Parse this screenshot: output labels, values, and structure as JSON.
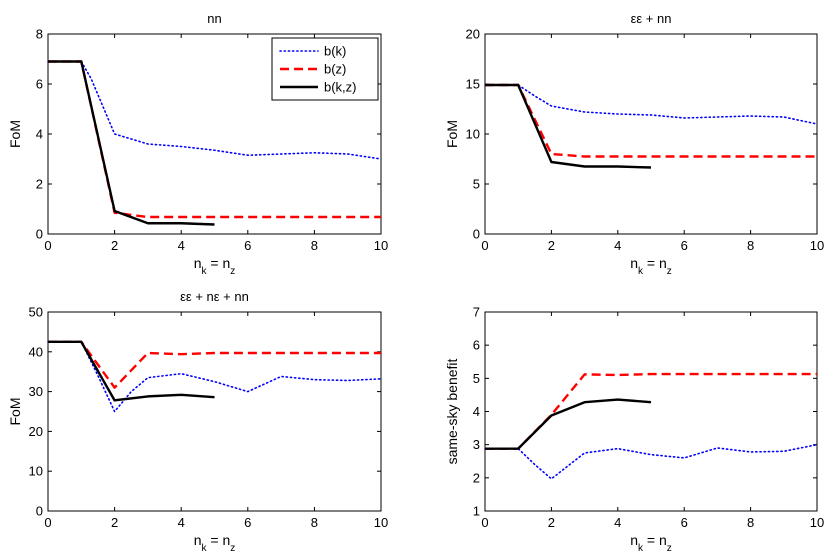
{
  "chart_data": [
    {
      "type": "line",
      "title": "nn",
      "xlabel": "n_k = n_z",
      "ylabel": "FoM",
      "xlim": [
        0,
        10
      ],
      "ylim": [
        0,
        8
      ],
      "xticks": [
        0,
        2,
        4,
        6,
        8,
        10
      ],
      "yticks": [
        0,
        2,
        4,
        6,
        8
      ],
      "legend": {
        "position": "top-right",
        "entries": [
          "b(k)",
          "b(z)",
          "b(k,z)"
        ]
      },
      "series": [
        {
          "name": "b(k)",
          "x": [
            0,
            1,
            1.3,
            2,
            3,
            4,
            5,
            6,
            7,
            8,
            9,
            10
          ],
          "values": [
            6.9,
            6.9,
            6.2,
            4.0,
            3.6,
            3.5,
            3.35,
            3.15,
            3.2,
            3.25,
            3.2,
            3.0
          ]
        },
        {
          "name": "b(z)",
          "x": [
            0,
            1,
            2,
            3,
            4,
            5,
            6,
            7,
            8,
            9,
            10
          ],
          "values": [
            6.9,
            6.9,
            0.85,
            0.68,
            0.68,
            0.68,
            0.68,
            0.68,
            0.68,
            0.68,
            0.68
          ]
        },
        {
          "name": "b(k,z)",
          "x": [
            0,
            1,
            2,
            3,
            4,
            5
          ],
          "values": [
            6.9,
            6.9,
            0.92,
            0.43,
            0.43,
            0.38
          ]
        }
      ]
    },
    {
      "type": "line",
      "title": "εε + nn",
      "xlabel": "n_k = n_z",
      "ylabel": "FoM",
      "xlim": [
        0,
        10
      ],
      "ylim": [
        0,
        20
      ],
      "xticks": [
        0,
        2,
        4,
        6,
        8,
        10
      ],
      "yticks": [
        0,
        5,
        10,
        15,
        20
      ],
      "series": [
        {
          "name": "b(k)",
          "x": [
            0,
            1,
            1.5,
            2,
            3,
            4,
            5,
            6,
            7,
            8,
            9,
            10
          ],
          "values": [
            14.9,
            14.9,
            13.8,
            12.8,
            12.2,
            12.0,
            11.9,
            11.6,
            11.7,
            11.8,
            11.7,
            11.0
          ]
        },
        {
          "name": "b(z)",
          "x": [
            0,
            1,
            2,
            3,
            4,
            5,
            6,
            7,
            8,
            9,
            10
          ],
          "values": [
            14.9,
            14.9,
            8.0,
            7.75,
            7.75,
            7.75,
            7.75,
            7.75,
            7.75,
            7.75,
            7.75
          ]
        },
        {
          "name": "b(k,z)",
          "x": [
            0,
            1,
            2,
            3,
            4,
            5
          ],
          "values": [
            14.9,
            14.9,
            7.2,
            6.75,
            6.75,
            6.65
          ]
        }
      ]
    },
    {
      "type": "line",
      "title": "εε + nε + nn",
      "xlabel": "n_k = n_z",
      "ylabel": "FoM",
      "xlim": [
        0,
        10
      ],
      "ylim": [
        0,
        50
      ],
      "xticks": [
        0,
        2,
        4,
        6,
        8,
        10
      ],
      "yticks": [
        0,
        10,
        20,
        30,
        40,
        50
      ],
      "series": [
        {
          "name": "b(k)",
          "x": [
            0,
            1,
            1.5,
            2,
            2.5,
            3,
            4,
            5,
            6,
            7,
            8,
            9,
            10
          ],
          "values": [
            42.5,
            42.5,
            34.0,
            25.0,
            30.0,
            33.5,
            34.5,
            32.5,
            30.0,
            33.8,
            33.0,
            32.8,
            33.2
          ]
        },
        {
          "name": "b(z)",
          "x": [
            0,
            1,
            2,
            3,
            4,
            5,
            6,
            7,
            8,
            9,
            10
          ],
          "values": [
            42.5,
            42.5,
            31.0,
            39.7,
            39.4,
            39.7,
            39.7,
            39.7,
            39.7,
            39.7,
            39.7
          ]
        },
        {
          "name": "b(k,z)",
          "x": [
            0,
            1,
            2,
            3,
            4,
            5
          ],
          "values": [
            42.5,
            42.5,
            27.8,
            28.8,
            29.2,
            28.6
          ]
        }
      ]
    },
    {
      "type": "line",
      "title": "",
      "xlabel": "n_k = n_z",
      "ylabel": "same-sky benefit",
      "xlim": [
        0,
        10
      ],
      "ylim": [
        1,
        7
      ],
      "xticks": [
        0,
        2,
        4,
        6,
        8,
        10
      ],
      "yticks": [
        1,
        2,
        3,
        4,
        5,
        6,
        7
      ],
      "series": [
        {
          "name": "b(k)",
          "x": [
            0,
            1,
            1.5,
            2,
            3,
            4,
            5,
            6,
            7,
            8,
            9,
            10
          ],
          "values": [
            2.88,
            2.88,
            2.4,
            1.97,
            2.75,
            2.88,
            2.7,
            2.6,
            2.9,
            2.78,
            2.8,
            3.0
          ]
        },
        {
          "name": "b(z)",
          "x": [
            0,
            1,
            2,
            3,
            4,
            5,
            6,
            7,
            8,
            9,
            10
          ],
          "values": [
            2.88,
            2.88,
            3.9,
            5.12,
            5.1,
            5.13,
            5.13,
            5.13,
            5.13,
            5.13,
            5.13
          ]
        },
        {
          "name": "b(k,z)",
          "x": [
            0,
            1,
            2,
            3,
            4,
            5
          ],
          "values": [
            2.88,
            2.88,
            3.88,
            4.28,
            4.36,
            4.28
          ]
        }
      ]
    }
  ],
  "styles": {
    "b(k)": {
      "color": "#0000ff",
      "dash": "dotted"
    },
    "b(z)": {
      "color": "#ff0000",
      "dash": "dashed"
    },
    "b(k,z)": {
      "color": "#000000",
      "dash": "solid"
    }
  }
}
